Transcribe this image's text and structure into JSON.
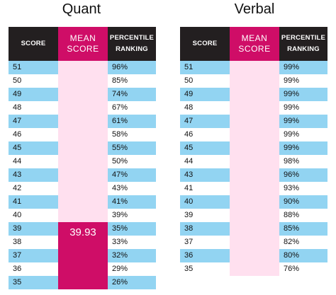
{
  "colors": {
    "header_dark": "#231f20",
    "header_pink": "#cf0d67",
    "mean_column_bg": "#ffe0ef",
    "row_blue": "#92d4f2",
    "row_white": "#ffffff",
    "mean_value_bg": "#cf0d67"
  },
  "quant": {
    "title": "Quant",
    "headers": {
      "score": "SCORE",
      "mean_line1": "MEAN",
      "mean_line2": "SCORE",
      "percentile_line1": "PERCENTILE",
      "percentile_line2": "RANKING"
    },
    "mean_score": "39.93",
    "mean_score_top_row_index": 12,
    "rows": [
      {
        "score": "51",
        "percentile": "96%"
      },
      {
        "score": "50",
        "percentile": "85%"
      },
      {
        "score": "49",
        "percentile": "74%"
      },
      {
        "score": "48",
        "percentile": "67%"
      },
      {
        "score": "47",
        "percentile": "61%"
      },
      {
        "score": "46",
        "percentile": "58%"
      },
      {
        "score": "45",
        "percentile": "55%"
      },
      {
        "score": "44",
        "percentile": "50%"
      },
      {
        "score": "43",
        "percentile": "47%"
      },
      {
        "score": "42",
        "percentile": "43%"
      },
      {
        "score": "41",
        "percentile": "41%"
      },
      {
        "score": "40",
        "percentile": "39%"
      },
      {
        "score": "39",
        "percentile": "35%"
      },
      {
        "score": "38",
        "percentile": "33%"
      },
      {
        "score": "37",
        "percentile": "32%"
      },
      {
        "score": "36",
        "percentile": "29%"
      },
      {
        "score": "35",
        "percentile": "26%"
      }
    ]
  },
  "verbal": {
    "title": "Verbal",
    "headers": {
      "score": "SCORE",
      "mean_line1": "MEAN",
      "mean_line2": "SCORE",
      "percentile_line1": "PERCENTILE",
      "percentile_line2": "RANKING"
    },
    "rows": [
      {
        "score": "51",
        "percentile": "99%"
      },
      {
        "score": "50",
        "percentile": "99%"
      },
      {
        "score": "49",
        "percentile": "99%"
      },
      {
        "score": "48",
        "percentile": "99%"
      },
      {
        "score": "47",
        "percentile": "99%"
      },
      {
        "score": "46",
        "percentile": "99%"
      },
      {
        "score": "45",
        "percentile": "99%"
      },
      {
        "score": "44",
        "percentile": "98%"
      },
      {
        "score": "43",
        "percentile": "96%"
      },
      {
        "score": "41",
        "percentile": "93%"
      },
      {
        "score": "40",
        "percentile": "90%"
      },
      {
        "score": "39",
        "percentile": "88%"
      },
      {
        "score": "38",
        "percentile": "85%"
      },
      {
        "score": "37",
        "percentile": "82%"
      },
      {
        "score": "36",
        "percentile": "80%"
      },
      {
        "score": "35",
        "percentile": "76%"
      }
    ]
  }
}
